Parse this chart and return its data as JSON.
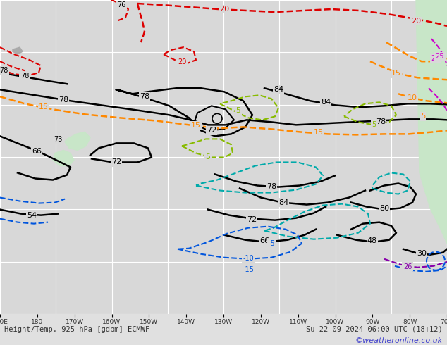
{
  "title_left": "Height/Temp. 925 hPa [gdpm] ECMWF",
  "title_right": "Su 22-09-2024 06:00 UTC (18+12)",
  "watermark": "©weatheronline.co.uk",
  "bg_color": "#e0e0e0",
  "map_bg": "#d8d8d8",
  "grid_color": "#ffffff",
  "fig_width": 6.34,
  "fig_height": 4.9,
  "dpi": 100,
  "xlabel_color": "#333333",
  "bottom_label_color": "#333333",
  "watermark_color": "#4444cc",
  "land_color_right": "#c8e6c8",
  "land_color_nz": "#c8e6c8",
  "black": "#000000",
  "red": "#dd0000",
  "orange": "#ff8800",
  "yellow_green": "#88bb00",
  "cyan": "#00aaaa",
  "blue": "#0055dd",
  "purple": "#8800aa",
  "magenta": "#cc00cc"
}
